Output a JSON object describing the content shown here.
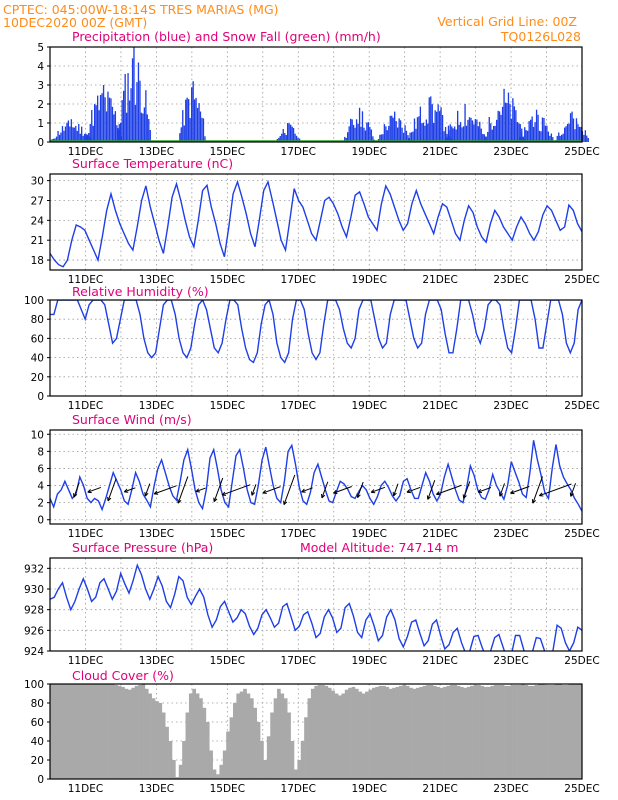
{
  "header": {
    "line1_left": "CPTEC:   045:00W-18:14S   TRES MARIAS (MG)",
    "line2_left": "10DEC2020 00Z (GMT)",
    "line1_right": "Vertical Grid Line: 00Z",
    "line2_right": "TQ0126L028"
  },
  "colors": {
    "header": "#ff8c1a",
    "title": "#e0007a",
    "series": "#1f3fe6",
    "snow": "#2ca02c",
    "cloud": "#a9a9a9",
    "arrow": "#000000",
    "grid": "#9a9a9a"
  },
  "chart_data": [
    {
      "id": "precip",
      "type": "bar",
      "title": "Precipitation (blue) and Snow Fall (green) (mm/h)",
      "ylim": [
        0,
        5
      ],
      "yticks": [
        0,
        1,
        2,
        3,
        4,
        5
      ],
      "xticks": [
        "11DEC",
        "13DEC",
        "15DEC",
        "17DEC",
        "19DEC",
        "21DEC",
        "23DEC",
        "25DEC"
      ],
      "x_start": "10DEC2020 00Z",
      "x_end": "25DEC2020 00Z",
      "grid": true,
      "snow_values": "zero",
      "clusters": [
        [
          0.6,
          1.2,
          1.2
        ],
        [
          1.5,
          3.0,
          1.1
        ],
        [
          2.35,
          5.0,
          1.0
        ],
        [
          4.0,
          3.2,
          0.8
        ],
        [
          6.7,
          1.0,
          0.7
        ],
        [
          8.7,
          1.8,
          0.9
        ],
        [
          9.7,
          1.6,
          1.0
        ],
        [
          10.7,
          2.4,
          1.3
        ],
        [
          11.7,
          2.0,
          1.2
        ],
        [
          12.8,
          2.8,
          1.2
        ],
        [
          13.7,
          1.7,
          1.0
        ],
        [
          14.7,
          1.6,
          1.0
        ]
      ],
      "note_series": "precipitation"
    },
    {
      "id": "temp",
      "type": "line",
      "title": "Surface Temperature (nC)",
      "ylim": [
        16.5,
        31
      ],
      "yticks": [
        18,
        21,
        24,
        27,
        30
      ],
      "xticks": [
        "11DEC",
        "13DEC",
        "15DEC",
        "17DEC",
        "19DEC",
        "21DEC",
        "23DEC",
        "25DEC"
      ],
      "grid": true,
      "values": [
        19,
        18,
        17.3,
        17,
        18,
        21,
        23.3,
        23,
        22.5,
        21,
        19.5,
        18,
        21.5,
        25.5,
        28,
        25.5,
        23.5,
        22,
        20.5,
        19.5,
        23,
        27,
        29.2,
        26,
        23.5,
        21,
        19,
        23,
        27.5,
        29.5,
        27,
        24,
        21.5,
        20,
        24,
        28.5,
        29.3,
        26,
        23.5,
        20.5,
        18.5,
        23,
        28,
        29.8,
        27.5,
        25,
        22,
        20,
        24,
        28.5,
        29.8,
        27,
        24,
        21,
        19.5,
        24,
        28.8,
        27,
        26,
        24,
        22,
        21,
        24,
        27,
        27.5,
        26.5,
        25,
        23,
        21.5,
        24.5,
        27.8,
        28.3,
        26.5,
        24.5,
        23.5,
        22.5,
        26.5,
        29.2,
        28,
        26,
        24,
        22.5,
        23.5,
        26.5,
        28.5,
        26.5,
        25,
        23.5,
        22,
        24.5,
        26.5,
        26,
        24,
        22,
        21,
        24,
        26.2,
        25.2,
        23,
        21.5,
        20.7,
        23.5,
        25.5,
        24.5,
        23,
        22,
        21,
        23,
        24.5,
        23.5,
        22,
        21,
        22.3,
        24.8,
        26.2,
        25.5,
        24,
        22.5,
        23,
        26.3,
        25.5,
        23.5,
        22.3
      ]
    },
    {
      "id": "rh",
      "type": "line",
      "title": "Relative Humidity (%)",
      "ylim": [
        0,
        100
      ],
      "yticks": [
        0,
        20,
        40,
        60,
        80,
        100
      ],
      "xticks": [
        "11DEC",
        "13DEC",
        "15DEC",
        "17DEC",
        "19DEC",
        "21DEC",
        "23DEC",
        "25DEC"
      ],
      "grid": true,
      "values": [
        85,
        85,
        100,
        100,
        100,
        100,
        100,
        100,
        90,
        80,
        95,
        100,
        100,
        100,
        95,
        75,
        55,
        60,
        80,
        100,
        100,
        100,
        100,
        85,
        60,
        45,
        40,
        45,
        70,
        95,
        100,
        100,
        85,
        60,
        45,
        40,
        50,
        75,
        95,
        100,
        90,
        70,
        50,
        45,
        55,
        80,
        100,
        100,
        95,
        70,
        50,
        38,
        35,
        45,
        75,
        95,
        100,
        85,
        55,
        40,
        35,
        45,
        80,
        100,
        100,
        90,
        65,
        45,
        38,
        45,
        75,
        100,
        100,
        100,
        90,
        70,
        55,
        50,
        60,
        90,
        100,
        100,
        100,
        80,
        60,
        50,
        55,
        85,
        100,
        100,
        100,
        100,
        80,
        60,
        50,
        55,
        85,
        100,
        100,
        100,
        90,
        65,
        45,
        45,
        70,
        100,
        100,
        100,
        85,
        65,
        55,
        70,
        95,
        100,
        100,
        95,
        70,
        50,
        45,
        70,
        100,
        100,
        100,
        100,
        80,
        50,
        50,
        75,
        100,
        100,
        100,
        85,
        55,
        45,
        55,
        90,
        100
      ]
    },
    {
      "id": "wind",
      "type": "line",
      "title": "Surface Wind (m/s)",
      "ylim": [
        -0.5,
        10.5
      ],
      "yticks": [
        0,
        2,
        4,
        6,
        8,
        10
      ],
      "xticks": [
        "11DEC",
        "13DEC",
        "15DEC",
        "17DEC",
        "19DEC",
        "21DEC",
        "23DEC",
        "25DEC"
      ],
      "grid": true,
      "values": [
        2.5,
        1.5,
        3,
        3.5,
        4.5,
        3.5,
        2.5,
        3,
        5,
        4,
        2.5,
        2,
        2.5,
        2.2,
        1.2,
        2.5,
        4,
        5.5,
        4.5,
        3.5,
        2.2,
        1.8,
        3.5,
        5.5,
        4.5,
        3,
        2.3,
        1.5,
        4,
        6,
        7,
        5.5,
        4,
        2.8,
        2.3,
        4.5,
        7,
        8.2,
        6,
        3.5,
        2,
        1.3,
        3.5,
        7.2,
        8.2,
        6,
        3.5,
        2,
        1.5,
        4.5,
        7.5,
        8.2,
        6,
        3.5,
        2,
        1.8,
        4,
        7,
        8.5,
        6.2,
        4,
        2.5,
        2,
        4.5,
        8,
        8.7,
        6.5,
        3.8,
        2.2,
        1.8,
        3.2,
        5.5,
        6.5,
        5,
        3.5,
        2.2,
        2,
        3.3,
        4.5,
        4.2,
        3.6,
        2.7,
        2.5,
        3.3,
        4,
        3.5,
        2.5,
        1.8,
        2.7,
        4,
        4.5,
        3.8,
        2.8,
        2.2,
        2.8,
        4.5,
        4.8,
        3.5,
        2.5,
        2.5,
        4,
        5.5,
        4.5,
        3,
        2.2,
        3,
        5,
        6.5,
        5,
        3.5,
        2.3,
        2,
        3.8,
        6.3,
        5.2,
        3.5,
        2.6,
        2.4,
        3.5,
        5.3,
        4,
        3.2,
        2.4,
        4,
        6.8,
        5.6,
        4.4,
        3,
        2.6,
        5.5,
        9.3,
        7,
        5.2,
        3.2,
        2.5,
        6,
        8.8,
        6.3,
        5,
        4.2,
        3.5,
        2.5,
        1.8,
        1
      ]
    },
    {
      "id": "pressure",
      "type": "line",
      "title": "Surface Pressure (hPa)",
      "subtitle": "Model Altitude: 747.14 m",
      "ylim": [
        924,
        933
      ],
      "yticks": [
        924,
        926,
        928,
        930,
        932
      ],
      "xticks": [
        "11DEC",
        "13DEC",
        "15DEC",
        "17DEC",
        "19DEC",
        "21DEC",
        "23DEC",
        "25DEC"
      ],
      "grid": true,
      "values": [
        929,
        929.2,
        930,
        930.6,
        929.2,
        928,
        928.8,
        930,
        931,
        930,
        928.8,
        929.2,
        930.6,
        931,
        930,
        929,
        929.8,
        931.5,
        930.5,
        929.6,
        930.8,
        932.3,
        931.4,
        930,
        929,
        930,
        931.2,
        930.3,
        928.8,
        928.2,
        929.5,
        931.2,
        930.8,
        929.2,
        928.5,
        929.3,
        930,
        929.2,
        927.5,
        926.3,
        927,
        928.3,
        928.8,
        927.8,
        926.8,
        927.2,
        928,
        927.6,
        926.4,
        925.6,
        926.2,
        927.5,
        928,
        927.2,
        926.3,
        926.7,
        928.3,
        928.6,
        927.3,
        926,
        926.4,
        927.5,
        927.8,
        926.7,
        925.3,
        925.7,
        927.3,
        928,
        927.2,
        925.8,
        926.2,
        928.2,
        928.6,
        927.4,
        925.8,
        925.3,
        927,
        927.6,
        926.4,
        925,
        925.5,
        927.3,
        928,
        927,
        925.2,
        924.4,
        925.4,
        926.8,
        927,
        925.7,
        924.5,
        925,
        926.6,
        927,
        925.5,
        924.2,
        924.6,
        925.8,
        926.2,
        924.8,
        923.8,
        924,
        925.4,
        925.5,
        924.3,
        923.4,
        924,
        925.3,
        925.6,
        924.4,
        923.2,
        923.6,
        925.5,
        925.5,
        924.1,
        923,
        923.8,
        925.3,
        925.2,
        924,
        923,
        924,
        926.5,
        926.2,
        924.8,
        924,
        924.8,
        926.3,
        926
      ]
    },
    {
      "id": "cloud",
      "type": "bar",
      "title": "Cloud Cover (%)",
      "ylim": [
        0,
        100
      ],
      "yticks": [
        0,
        20,
        40,
        60,
        80,
        100
      ],
      "xticks": [
        "11DEC",
        "13DEC",
        "15DEC",
        "17DEC",
        "19DEC",
        "21DEC",
        "23DEC",
        "25DEC"
      ],
      "grid": true,
      "values": [
        100,
        100,
        100,
        100,
        100,
        100,
        100,
        100,
        100,
        100,
        100,
        100,
        100,
        100,
        100,
        100,
        100,
        100,
        100,
        99,
        98,
        97,
        95,
        94,
        96,
        98,
        99,
        100,
        95,
        90,
        85,
        82,
        80,
        70,
        55,
        40,
        20,
        2,
        15,
        40,
        70,
        90,
        95,
        90,
        85,
        75,
        60,
        30,
        10,
        5,
        15,
        30,
        50,
        65,
        80,
        90,
        92,
        95,
        90,
        85,
        75,
        60,
        40,
        20,
        45,
        70,
        85,
        95,
        90,
        85,
        70,
        40,
        10,
        20,
        40,
        65,
        85,
        95,
        98,
        99,
        99,
        98,
        96,
        93,
        90,
        88,
        90,
        94,
        96,
        97,
        95,
        92,
        90,
        92,
        94,
        96,
        97,
        98,
        98,
        97,
        95,
        96,
        97,
        98,
        99,
        98,
        96,
        95,
        96,
        97,
        98,
        99,
        99,
        98,
        97,
        96,
        97,
        98,
        99,
        99,
        98,
        97,
        96,
        97,
        98,
        99,
        99,
        98,
        97,
        97,
        98,
        99,
        99,
        99,
        98,
        98,
        99,
        99,
        99,
        100,
        99,
        98,
        98,
        99,
        100,
        100,
        99,
        99,
        99,
        100,
        100,
        99,
        99,
        100,
        100,
        100,
        100
      ]
    }
  ]
}
